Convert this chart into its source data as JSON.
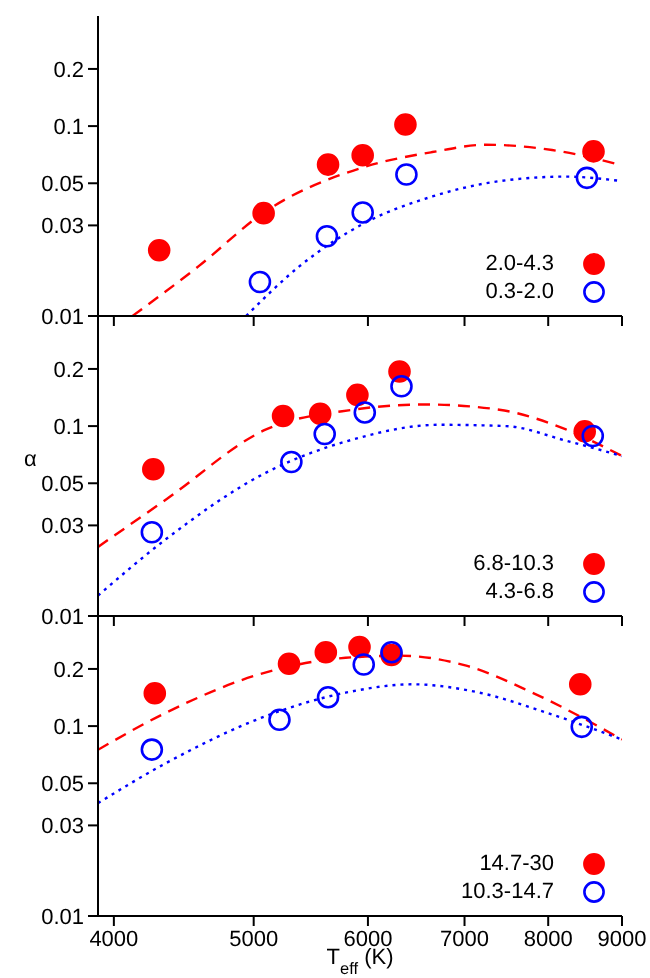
{
  "chart_data": [
    {
      "type": "scatter",
      "log": "xy",
      "xlim": [
        3900,
        9000
      ],
      "xticks": [
        4000,
        5000,
        6000,
        7000,
        8000,
        9000
      ],
      "ylim": [
        0.01,
        0.38
      ],
      "yticks": [
        0.01,
        0.03,
        0.05,
        0.1,
        0.2
      ],
      "tick_labels": "y",
      "legend": "bottom right",
      "series": [
        {
          "name": "2.0-4.3",
          "color": "#ff0000",
          "marker": "circle",
          "x": [
            4300,
            5080,
            5630,
            5950,
            6370,
            8600
          ],
          "values": [
            0.0222,
            0.0348,
            0.0627,
            0.0702,
            0.102,
            0.0736
          ]
        },
        {
          "name": "0.3-2.0",
          "color": "#0000ff",
          "marker": "circle",
          "x": [
            5050,
            5620,
            5950,
            6380,
            8510
          ],
          "values": [
            0.0151,
            0.0263,
            0.0351,
            0.0556,
            0.0534
          ]
        },
        {
          "type": "line",
          "color": "#ff0000",
          "line_style": "dashed",
          "marker": "none",
          "x": [
            4120,
            4580,
            5080,
            5970,
            6650,
            7240,
            8050,
            9000
          ],
          "values": [
            0.01,
            0.0183,
            0.035,
            0.061,
            0.073,
            0.0798,
            0.0748,
            0.0622
          ]
        },
        {
          "type": "line",
          "color": "#0000ff",
          "line_style": "dotted",
          "marker": "none",
          "x": [
            4940,
            5380,
            5970,
            6650,
            7400,
            8230,
            9000
          ],
          "values": [
            0.01,
            0.0183,
            0.0309,
            0.0426,
            0.0513,
            0.0542,
            0.0513
          ]
        }
      ]
    },
    {
      "type": "scatter",
      "log": "xy",
      "xlim": [
        3900,
        9000
      ],
      "xticks": [
        4000,
        5000,
        6000,
        7000,
        8000,
        9000
      ],
      "ylim": [
        0.01,
        0.38
      ],
      "yticks": [
        0.01,
        0.03,
        0.05,
        0.1,
        0.2
      ],
      "tick_labels": "y",
      "legend": "bottom right",
      "ylabel": "α",
      "series": [
        {
          "name": "6.8-10.3",
          "color": "#ff0000",
          "marker": "circle",
          "x": [
            4260,
            5240,
            5560,
            5900,
            6310,
            8480
          ],
          "values": [
            0.0593,
            0.113,
            0.116,
            0.146,
            0.194,
            0.0938
          ]
        },
        {
          "name": "4.3-6.8",
          "color": "#0000ff",
          "marker": "circle",
          "x": [
            4250,
            5310,
            5600,
            5970,
            6330,
            8590
          ],
          "values": [
            0.0276,
            0.0647,
            0.0908,
            0.118,
            0.162,
            0.0887
          ]
        },
        {
          "type": "line",
          "color": "#ff0000",
          "line_style": "dashed",
          "marker": "none",
          "x": [
            3900,
            4350,
            5100,
            5860,
            6580,
            7400,
            8230,
            9000
          ],
          "values": [
            0.0231,
            0.0412,
            0.096,
            0.122,
            0.13,
            0.122,
            0.096,
            0.0696
          ]
        },
        {
          "type": "line",
          "color": "#0000ff",
          "line_style": "dotted",
          "marker": "none",
          "x": [
            3900,
            4350,
            5100,
            5860,
            6720,
            7480,
            8230,
            9000
          ],
          "values": [
            0.0128,
            0.0255,
            0.0569,
            0.0851,
            0.1016,
            0.1,
            0.0838,
            0.0696
          ]
        }
      ]
    },
    {
      "type": "scatter",
      "log": "xy",
      "xlim": [
        3900,
        9000
      ],
      "xticks": [
        4000,
        5000,
        6000,
        7000,
        8000,
        9000
      ],
      "ylim": [
        0.01,
        0.38
      ],
      "yticks": [
        0.01,
        0.03,
        0.05,
        0.1,
        0.2
      ],
      "legend": "bottom right",
      "xlabel": "T$_{eff}$ (K)",
      "series": [
        {
          "name": "14.7-30",
          "color": "#ff0000",
          "marker": "circle",
          "x": [
            4270,
            5290,
            5610,
            5920,
            6230,
            8420
          ],
          "values": [
            0.149,
            0.213,
            0.245,
            0.261,
            0.237,
            0.166
          ]
        },
        {
          "name": "10.3-14.7",
          "color": "#0000ff",
          "marker": "circle",
          "x": [
            4250,
            5210,
            5630,
            5960,
            6230,
            8440
          ],
          "values": [
            0.0752,
            0.108,
            0.142,
            0.211,
            0.245,
            0.0991
          ]
        },
        {
          "type": "line",
          "color": "#ff0000",
          "line_style": "dashed",
          "marker": "none",
          "x": [
            3900,
            4350,
            5100,
            5790,
            6310,
            7020,
            7800,
            9000
          ],
          "values": [
            0.075,
            0.118,
            0.192,
            0.229,
            0.235,
            0.208,
            0.15,
            0.085
          ]
        },
        {
          "type": "line",
          "color": "#0000ff",
          "line_style": "dotted",
          "marker": "none",
          "x": [
            3900,
            4350,
            5100,
            5790,
            6440,
            7170,
            7970,
            9000
          ],
          "values": [
            0.0393,
            0.064,
            0.113,
            0.15,
            0.166,
            0.15,
            0.118,
            0.085
          ]
        }
      ]
    }
  ]
}
